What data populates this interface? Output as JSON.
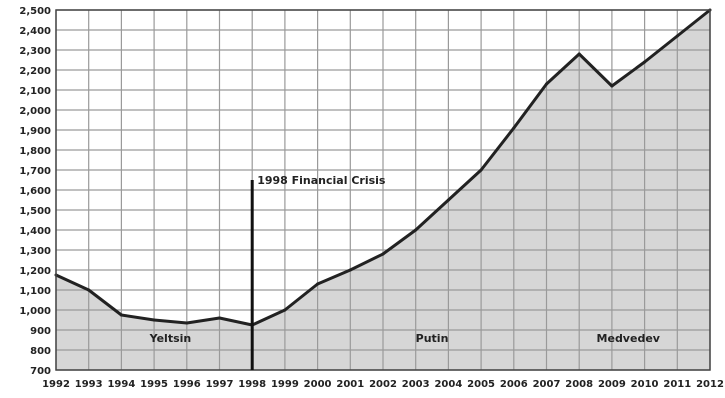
{
  "chart_data": {
    "type": "area",
    "title": "",
    "xlabel": "",
    "ylabel": "",
    "x": [
      1992,
      1993,
      1994,
      1995,
      1996,
      1997,
      1998,
      1999,
      2000,
      2001,
      2002,
      2003,
      2004,
      2005,
      2006,
      2007,
      2008,
      2009,
      2010,
      2011,
      2012
    ],
    "x_tick_labels": [
      "1992",
      "1993",
      "1994",
      "1995",
      "1996",
      "1997",
      "1998",
      "1999",
      "2000",
      "2001",
      "2002",
      "2003",
      "2004",
      "2005",
      "2006",
      "2007",
      "2008",
      "2009",
      "2010",
      "2011",
      "2012"
    ],
    "series": [
      {
        "values": [
          1175,
          1100,
          975,
          950,
          935,
          960,
          925,
          1000,
          1130,
          1200,
          1280,
          1400,
          1550,
          1700,
          1910,
          2130,
          2280,
          2120,
          2240,
          2370,
          2500
        ]
      }
    ],
    "ylim": [
      700,
      2500
    ],
    "y_ticks": [
      700,
      800,
      900,
      1000,
      1100,
      1200,
      1300,
      1400,
      1500,
      1600,
      1700,
      1800,
      1900,
      2000,
      2100,
      2200,
      2300,
      2400,
      2500
    ],
    "y_tick_labels": [
      "700",
      "800",
      "900",
      "1,000",
      "1,100",
      "1,200",
      "1,300",
      "1,400",
      "1,500",
      "1,600",
      "1,700",
      "1,800",
      "1,900",
      "2,000",
      "2,100",
      "2,200",
      "2,300",
      "2,400",
      "2,500"
    ],
    "grid": true,
    "annotations": [
      {
        "text": "1998 Financial Crisis",
        "x": 1998,
        "y": 1650,
        "kind": "vertical-marker"
      },
      {
        "text": "Yeltsin",
        "x": 1995.5,
        "y": 860,
        "kind": "label"
      },
      {
        "text": "Putin",
        "x": 2003.5,
        "y": 860,
        "kind": "label"
      },
      {
        "text": "Medvedev",
        "x": 2009.5,
        "y": 860,
        "kind": "label"
      }
    ],
    "colors": {
      "fill": "#d6d6d6",
      "line": "#222222",
      "grid": "#9a9a9a",
      "axis": "#444444"
    }
  }
}
